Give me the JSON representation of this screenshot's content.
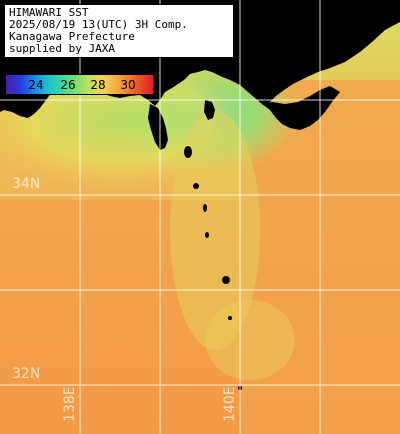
{
  "info": {
    "line1": "HIMAWARI SST",
    "line2": "2025/08/19 13(UTC) 3H Comp.",
    "line3": "Kanagawa Prefecture",
    "line4": "supplied by JAXA"
  },
  "colorbar": {
    "ticks": [
      "24",
      "26",
      "28",
      "30"
    ],
    "gradient_colors": [
      "#4a1ea8",
      "#2a3be0",
      "#1a8de6",
      "#1ec8c8",
      "#37d99a",
      "#7de06a",
      "#c8e060",
      "#f2d25a",
      "#f5a83e",
      "#ef6a28",
      "#e0202a"
    ]
  },
  "grid": {
    "lat_labels": [
      "34N",
      "32N"
    ],
    "lon_labels": [
      "138E",
      "140E"
    ]
  },
  "colors": {
    "land": "#000000",
    "grid_lines": "#ffffff",
    "warm_sea": "#f2a04a",
    "cool_sea": "#3fd2b0"
  }
}
